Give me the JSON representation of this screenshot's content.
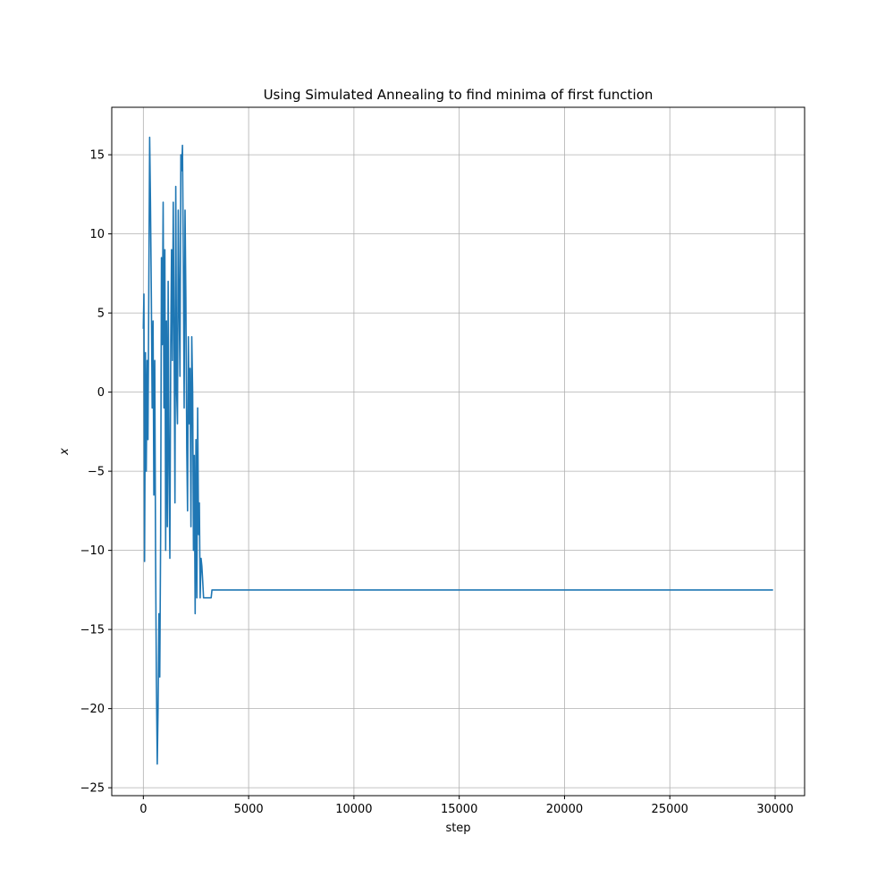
{
  "chart_data": {
    "type": "line",
    "title": "Using Simulated Annealing to find minima of first function",
    "xlabel": "step",
    "ylabel": "x",
    "xlim": [
      -1500,
      31400
    ],
    "ylim": [
      -25.5,
      18.0
    ],
    "xticks": [
      0,
      5000,
      10000,
      15000,
      20000,
      25000,
      30000
    ],
    "xtick_labels": [
      "0",
      "5000",
      "10000",
      "15000",
      "20000",
      "25000",
      "30000"
    ],
    "yticks": [
      -25,
      -20,
      -15,
      -10,
      -5,
      0,
      5,
      10,
      15
    ],
    "ytick_labels": [
      "−25",
      "−20",
      "−15",
      "−10",
      "−5",
      "0",
      "5",
      "10",
      "15"
    ],
    "grid": true,
    "series": [
      {
        "name": "x",
        "color": "#1f77b4",
        "x": [
          0,
          30,
          60,
          100,
          140,
          180,
          220,
          260,
          300,
          340,
          380,
          420,
          460,
          500,
          540,
          580,
          620,
          660,
          700,
          740,
          780,
          820,
          860,
          900,
          940,
          980,
          1020,
          1060,
          1100,
          1140,
          1180,
          1220,
          1260,
          1300,
          1340,
          1380,
          1420,
          1460,
          1500,
          1540,
          1580,
          1620,
          1660,
          1700,
          1740,
          1780,
          1820,
          1860,
          1900,
          1940,
          1980,
          2020,
          2060,
          2100,
          2140,
          2180,
          2220,
          2260,
          2300,
          2340,
          2380,
          2420,
          2460,
          2500,
          2540,
          2580,
          2620,
          2660,
          2700,
          2740,
          2780,
          2820,
          2860,
          2900,
          2940,
          2980,
          3020,
          3060,
          3100,
          3140,
          3180,
          3220,
          3260,
          3300,
          3340,
          3380,
          3420,
          3460,
          3500,
          29900
        ],
        "y": [
          4.0,
          6.2,
          -10.7,
          2.5,
          -5.0,
          2.0,
          -3.0,
          7.0,
          16.1,
          12.0,
          6.0,
          -1.0,
          4.5,
          -6.5,
          2.0,
          -10.0,
          -18.0,
          -23.5,
          -20.0,
          -14.0,
          -18.0,
          -9.0,
          8.5,
          3.0,
          12.0,
          -1.0,
          9.0,
          -10.0,
          4.5,
          -8.5,
          7.0,
          -5.0,
          -10.5,
          3.0,
          9.0,
          2.0,
          12.0,
          4.0,
          -7.0,
          13.0,
          0.0,
          -2.0,
          11.5,
          5.5,
          1.0,
          15.0,
          14.0,
          15.6,
          8.0,
          -1.0,
          11.5,
          6.0,
          -3.5,
          -7.5,
          3.5,
          -2.0,
          1.5,
          -8.5,
          3.5,
          0.0,
          -10.0,
          -4.0,
          -14.0,
          -3.0,
          -13.0,
          -1.0,
          -9.0,
          -7.0,
          -13.0,
          -10.5,
          -11.0,
          -12.0,
          -13.0,
          -13.0,
          -13.0,
          -13.0,
          -13.0,
          -13.0,
          -13.0,
          -13.0,
          -13.0,
          -13.0,
          -12.5,
          -12.5,
          -12.5,
          -12.5,
          -12.5,
          -12.5,
          -12.5,
          -12.5
        ]
      }
    ]
  }
}
